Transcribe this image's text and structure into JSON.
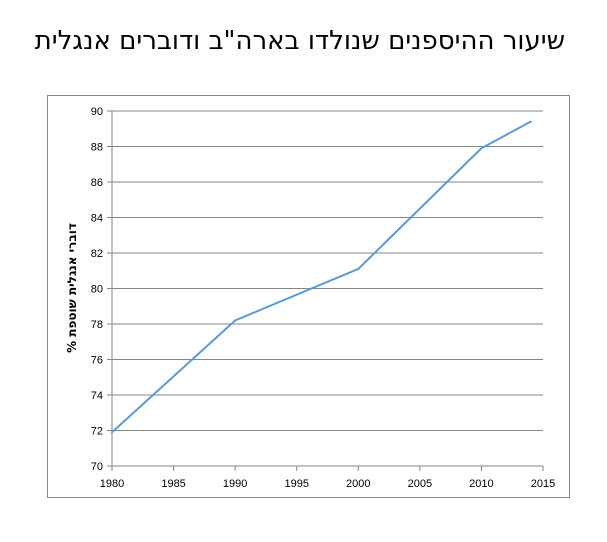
{
  "chart_data": {
    "type": "line",
    "title": "שיעור ההיספנים שנולדו בארה\"ב ודוברים אנגלית",
    "xlabel": "",
    "ylabel": "% דוברי אנגלית שוטפת",
    "x": [
      1980,
      1990,
      2000,
      2010,
      2014
    ],
    "series": [
      {
        "values": [
          71.9,
          78.2,
          81.1,
          87.9,
          89.4
        ]
      }
    ],
    "xlim": [
      1980,
      2015
    ],
    "ylim": [
      70,
      90
    ],
    "x_ticks": [
      "1980",
      "1985",
      "1990",
      "1995",
      "2000",
      "2005",
      "2010",
      "2015"
    ],
    "y_ticks": [
      "70",
      "72",
      "74",
      "76",
      "78",
      "80",
      "82",
      "84",
      "86",
      "88",
      "90"
    ],
    "grid": "horizontal",
    "legend": "none",
    "colors": {
      "line": "#5b9bd5",
      "grid": "#868686",
      "axis": "#868686"
    }
  }
}
